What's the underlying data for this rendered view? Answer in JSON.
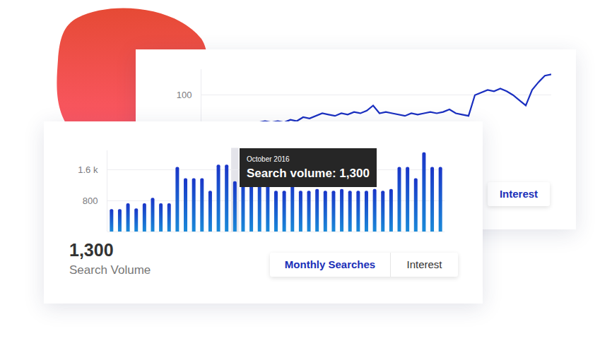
{
  "chart_data": [
    {
      "type": "bar",
      "categories": [
        null,
        null,
        null,
        null,
        null,
        null,
        null,
        null,
        null,
        null,
        null,
        null,
        null,
        null,
        null,
        "October 2016",
        null,
        null,
        null,
        null,
        null,
        null,
        null,
        null,
        null,
        null,
        null,
        null,
        null,
        null,
        null,
        null,
        null,
        null,
        null,
        null,
        null,
        null,
        null,
        null,
        null
      ],
      "values": [
        580,
        580,
        730,
        600,
        730,
        870,
        730,
        730,
        1670,
        1380,
        1380,
        1380,
        1055,
        1730,
        1730,
        1300,
        1380,
        1300,
        1380,
        1300,
        1055,
        1055,
        1300,
        1055,
        1055,
        1100,
        1055,
        1055,
        1100,
        1055,
        1055,
        1055,
        1100,
        1055,
        1100,
        1670,
        1670,
        1380,
        2050,
        1670,
        1670
      ],
      "color": "#1a35c8",
      "ylim": [
        0,
        2100
      ],
      "yticks": [
        800,
        {
          "value": 1600,
          "label": "1.6 k"
        }
      ],
      "grid": true,
      "tick_labels": "y",
      "tooltip": {
        "category": "October 2016",
        "label": "Search volume: 1,300"
      },
      "headline": {
        "text": "1,300",
        "caption": "Search Volume"
      },
      "buttons": [
        "Monthly Searches",
        "Interest"
      ],
      "active_button": "Monthly Searches"
    },
    {
      "type": "line",
      "categories": [
        null,
        null,
        null,
        null,
        null,
        null,
        null,
        null,
        null,
        null,
        null,
        null,
        null,
        null,
        null,
        null,
        null,
        null,
        null,
        null,
        null,
        null,
        null,
        null,
        null,
        null,
        null,
        null,
        null,
        null,
        null,
        null,
        null,
        null,
        null,
        null,
        null,
        null,
        null,
        null,
        null,
        null,
        null,
        null,
        null,
        null,
        null,
        null,
        null,
        null,
        null,
        null,
        null,
        null,
        null,
        null
      ],
      "values": [
        76,
        75,
        77,
        76,
        78,
        77,
        78,
        79,
        78,
        79,
        80,
        79,
        80,
        79,
        81,
        80,
        83,
        82,
        84,
        86,
        85,
        84,
        86,
        85,
        87,
        86,
        88,
        92,
        86,
        87,
        86,
        85,
        84,
        86,
        85,
        86,
        87,
        86,
        87,
        89,
        86,
        85,
        84,
        100,
        102,
        104,
        103,
        105,
        103,
        100,
        96,
        92,
        104,
        110,
        115,
        116
      ],
      "color": "#1a2fc0",
      "ylim": [
        40,
        120
      ],
      "yticks": [
        100
      ],
      "grid": true,
      "tick_labels": "y",
      "buttons": [
        "Interest"
      ],
      "active_button": "Interest"
    }
  ]
}
